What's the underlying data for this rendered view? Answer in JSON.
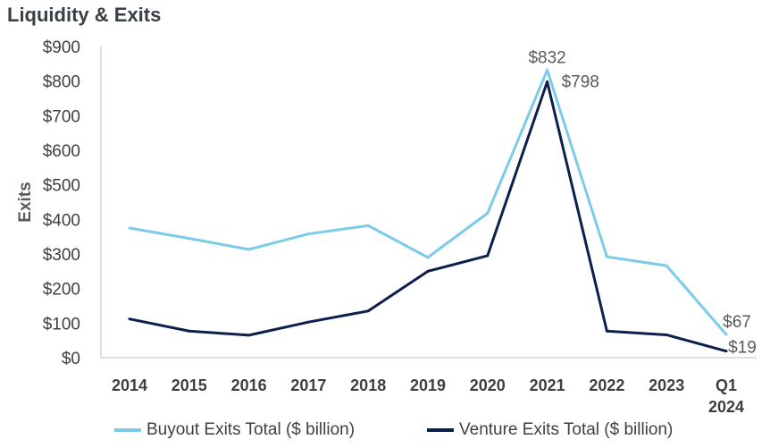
{
  "title": "Liquidity & Exits",
  "chart_data": {
    "type": "line",
    "ylabel": "Exits",
    "xlabel": "",
    "ylim": [
      0,
      900
    ],
    "yticks": [
      "$0",
      "$100",
      "$200",
      "$300",
      "$400",
      "$500",
      "$600",
      "$700",
      "$800",
      "$900"
    ],
    "categories": [
      "2014",
      "2015",
      "2016",
      "2017",
      "2018",
      "2019",
      "2020",
      "2021",
      "2022",
      "2023",
      "Q1 2024"
    ],
    "category_lines": [
      [
        "2014"
      ],
      [
        "2015"
      ],
      [
        "2016"
      ],
      [
        "2017"
      ],
      [
        "2018"
      ],
      [
        "2019"
      ],
      [
        "2020"
      ],
      [
        "2021"
      ],
      [
        "2022"
      ],
      [
        "2023"
      ],
      [
        "Q1",
        "2024"
      ]
    ],
    "series": [
      {
        "name": "Buyout Exits Total ($ billion)",
        "color": "#7ccbe9",
        "values": [
          375,
          345,
          313,
          358,
          382,
          290,
          418,
          832,
          292,
          266,
          67
        ]
      },
      {
        "name": "Venture Exits Total ($ billion)",
        "color": "#0c1f4d",
        "values": [
          112,
          77,
          65,
          103,
          135,
          250,
          295,
          798,
          77,
          66,
          19
        ]
      }
    ],
    "data_labels": [
      {
        "series": 0,
        "index": 7,
        "text": "$832"
      },
      {
        "series": 1,
        "index": 7,
        "text": "$798"
      },
      {
        "series": 0,
        "index": 10,
        "text": "$67"
      },
      {
        "series": 1,
        "index": 10,
        "text": "$19"
      }
    ],
    "grid": false,
    "legend_position": "bottom"
  }
}
